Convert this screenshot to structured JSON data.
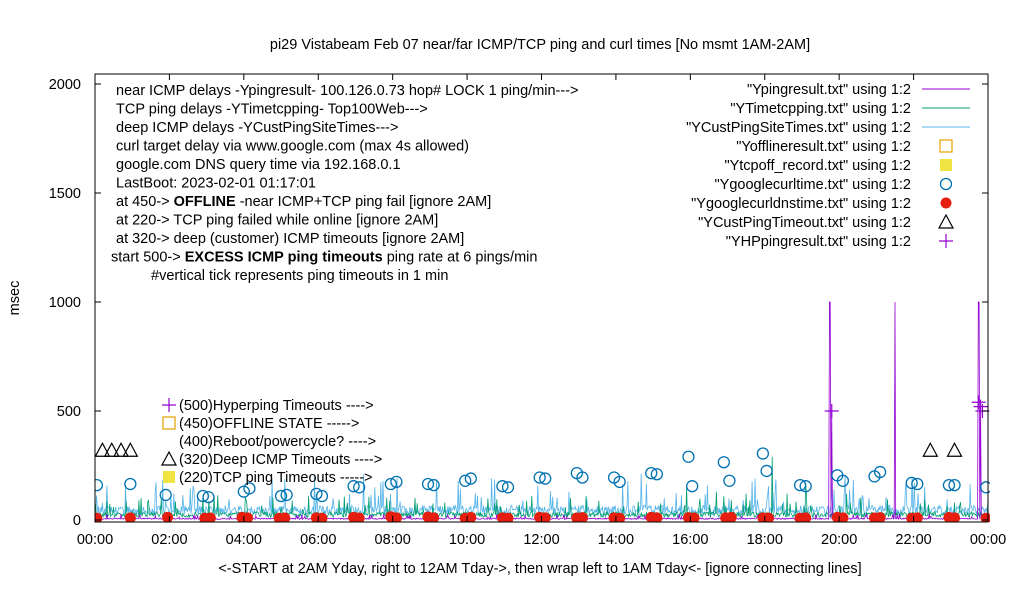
{
  "chart_data": {
    "type": "line",
    "title": "pi29 Vistabeam Feb 07  near/far ICMP/TCP ping and curl times [No msmt 1AM-2AM]",
    "xlabel": "<-START at 2AM Yday, right to 12AM Tday->, then wrap left to 1AM Tday<- [ignore connecting lines]",
    "ylabel": "msec",
    "xlim_hours": [
      0,
      24
    ],
    "ylim": [
      0,
      2050
    ],
    "x_ticks": [
      "00:00",
      "02:00",
      "04:00",
      "06:00",
      "08:00",
      "10:00",
      "12:00",
      "14:00",
      "16:00",
      "18:00",
      "20:00",
      "22:00",
      "00:00"
    ],
    "y_ticks": [
      0,
      500,
      1000,
      1500,
      2000
    ],
    "grid": false,
    "legend_position": "top-right",
    "notes": [
      "near ICMP delays -Ypingresult- 100.126.0.73 hop# LOCK 1 ping/min--->",
      "TCP ping delays -YTimetcpping- Top100Web--->",
      "deep ICMP delays -YCustPingSiteTimes--->",
      "curl target delay via www.google.com (max 4s allowed)",
      "google.com DNS query time via 192.168.0.1",
      "LastBoot: 2023-02-01 01:17:01"
    ],
    "status_notes": [
      {
        "prefix": "at 450-> ",
        "bold": "OFFLINE",
        "suffix": " -near ICMP+TCP ping fail [ignore 2AM]"
      },
      {
        "prefix": "at 220-> TCP ping failed while online [ignore 2AM]",
        "bold": "",
        "suffix": ""
      },
      {
        "prefix": "at 320-> deep (customer) ICMP timeouts [ignore 2AM]",
        "bold": "",
        "suffix": ""
      },
      {
        "prefix": "start 500-> ",
        "bold": "EXCESS ICMP ping timeouts",
        "suffix": "  ping rate at 6 pings/min"
      }
    ],
    "tick_note": "#vertical tick represents ping timeouts in 1 min",
    "level_labels": [
      {
        "y": 500,
        "marker": "plus",
        "text": "(500)Hyperping Timeouts ---->"
      },
      {
        "y": 450,
        "marker": "sqopen",
        "text": "(450)OFFLINE STATE ----->"
      },
      {
        "y": 400,
        "marker": "none",
        "text": "(400)Reboot/powercycle? ---->"
      },
      {
        "y": 320,
        "marker": "triangle",
        "text": "(320)Deep ICMP Timeouts ---->"
      },
      {
        "y": 220,
        "marker": "sqfill",
        "text": "(220)TCP ping Timeouts ----->"
      }
    ],
    "series": [
      {
        "name": "\"Ypingresult.txt\" using 1:2",
        "color": "#9400d3",
        "style": "line",
        "baseline": 6,
        "spikes": [
          [
            19.75,
            1000
          ],
          [
            19.8,
            500
          ],
          [
            21.5,
            1000
          ],
          [
            23.75,
            1000
          ],
          [
            23.8,
            520
          ]
        ]
      },
      {
        "name": "\"YTimetcpping.txt\" using 1:2",
        "color": "#009e73",
        "style": "line",
        "baseline": 25,
        "spikes": [
          [
            0.5,
            60
          ],
          [
            1.0,
            40
          ],
          [
            2.3,
            30
          ],
          [
            2.9,
            110
          ],
          [
            5.3,
            90
          ],
          [
            9.4,
            80
          ],
          [
            10.8,
            95
          ],
          [
            13.2,
            110
          ],
          [
            14.6,
            85
          ],
          [
            15.9,
            150
          ],
          [
            16.7,
            130
          ],
          [
            17.5,
            120
          ],
          [
            18.2,
            290
          ],
          [
            18.6,
            120
          ],
          [
            19.1,
            170
          ],
          [
            20.2,
            120
          ],
          [
            21.3,
            95
          ],
          [
            22.4,
            70
          ],
          [
            23.1,
            80
          ]
        ]
      },
      {
        "name": "\"YCustPingSiteTimes.txt\" using 1:2",
        "color": "#56b4e9",
        "style": "line",
        "baseline": 45,
        "spikes": [
          [
            0.2,
            80
          ],
          [
            1.9,
            90
          ],
          [
            3.6,
            95
          ],
          [
            6.4,
            100
          ],
          [
            8.2,
            85
          ],
          [
            11.5,
            90
          ],
          [
            15.3,
            100
          ],
          [
            17.8,
            95
          ],
          [
            20.8,
            100
          ],
          [
            22.9,
            95
          ]
        ]
      },
      {
        "name": "\"Yofflineresult.txt\" using 1:2",
        "color": "#e69f00",
        "style": "sqopen",
        "points": []
      },
      {
        "name": "\"Ytcpoff_record.txt\" using 1:2",
        "color": "#f0e442",
        "style": "sqfill",
        "points": []
      },
      {
        "name": "\"Ygooglecurltime.txt\" using 1:2",
        "color": "#0072b2",
        "style": "circle",
        "points": [
          [
            0.05,
            160
          ],
          [
            0.95,
            165
          ],
          [
            1.9,
            115
          ],
          [
            2.9,
            110
          ],
          [
            3.05,
            105
          ],
          [
            4.0,
            130
          ],
          [
            4.15,
            145
          ],
          [
            5.0,
            110
          ],
          [
            5.15,
            115
          ],
          [
            5.95,
            120
          ],
          [
            6.1,
            110
          ],
          [
            6.95,
            155
          ],
          [
            7.1,
            150
          ],
          [
            7.95,
            165
          ],
          [
            8.1,
            175
          ],
          [
            8.95,
            165
          ],
          [
            9.1,
            160
          ],
          [
            9.95,
            180
          ],
          [
            10.1,
            190
          ],
          [
            10.95,
            155
          ],
          [
            11.1,
            150
          ],
          [
            11.95,
            195
          ],
          [
            12.1,
            190
          ],
          [
            12.95,
            215
          ],
          [
            13.1,
            195
          ],
          [
            13.95,
            195
          ],
          [
            14.1,
            175
          ],
          [
            14.95,
            215
          ],
          [
            15.1,
            210
          ],
          [
            15.95,
            290
          ],
          [
            16.05,
            155
          ],
          [
            16.9,
            265
          ],
          [
            17.05,
            180
          ],
          [
            17.95,
            305
          ],
          [
            18.05,
            225
          ],
          [
            18.95,
            160
          ],
          [
            19.1,
            155
          ],
          [
            19.95,
            205
          ],
          [
            20.1,
            180
          ],
          [
            20.95,
            200
          ],
          [
            21.1,
            220
          ],
          [
            21.95,
            170
          ],
          [
            22.1,
            165
          ],
          [
            22.95,
            160
          ],
          [
            23.1,
            160
          ],
          [
            23.95,
            150
          ]
        ]
      },
      {
        "name": "\"Ygooglecurldnstime.txt\" using 1:2",
        "color": "#e51e10",
        "style": "dot",
        "points": [
          [
            0.05,
            8
          ],
          [
            0.95,
            10
          ],
          [
            1.95,
            12
          ],
          [
            2.95,
            8
          ],
          [
            3.1,
            9
          ],
          [
            3.95,
            12
          ],
          [
            4.1,
            10
          ],
          [
            4.95,
            8
          ],
          [
            5.1,
            9
          ],
          [
            5.95,
            10
          ],
          [
            6.1,
            8
          ],
          [
            6.95,
            12
          ],
          [
            7.1,
            9
          ],
          [
            7.95,
            15
          ],
          [
            8.1,
            10
          ],
          [
            8.95,
            14
          ],
          [
            9.1,
            10
          ],
          [
            9.95,
            8
          ],
          [
            10.1,
            12
          ],
          [
            10.95,
            10
          ],
          [
            11.1,
            8
          ],
          [
            11.95,
            12
          ],
          [
            12.1,
            10
          ],
          [
            12.95,
            9
          ],
          [
            13.1,
            11
          ],
          [
            13.95,
            10
          ],
          [
            14.1,
            8
          ],
          [
            14.95,
            12
          ],
          [
            15.1,
            10
          ],
          [
            15.95,
            11
          ],
          [
            16.1,
            9
          ],
          [
            16.95,
            10
          ],
          [
            17.1,
            12
          ],
          [
            17.95,
            10
          ],
          [
            18.1,
            9
          ],
          [
            18.95,
            8
          ],
          [
            19.1,
            10
          ],
          [
            19.95,
            12
          ],
          [
            20.1,
            10
          ],
          [
            20.95,
            9
          ],
          [
            21.1,
            11
          ],
          [
            21.95,
            8
          ],
          [
            22.1,
            10
          ],
          [
            22.95,
            12
          ],
          [
            23.1,
            10
          ],
          [
            23.95,
            8
          ]
        ]
      },
      {
        "name": "\"YCustPingTimeout.txt\" using 1:2",
        "color": "#000000",
        "style": "triangle",
        "points": [
          [
            0.2,
            320
          ],
          [
            0.45,
            320
          ],
          [
            0.7,
            320
          ],
          [
            0.95,
            320
          ],
          [
            22.45,
            320
          ],
          [
            23.1,
            320
          ]
        ]
      },
      {
        "name": "\"YHPpingresult.txt\" using 1:2",
        "color": "#9400d3",
        "style": "plus",
        "points": [
          [
            19.8,
            500
          ],
          [
            23.8,
            520
          ],
          [
            23.85,
            500
          ],
          [
            23.75,
            540
          ]
        ]
      }
    ]
  }
}
